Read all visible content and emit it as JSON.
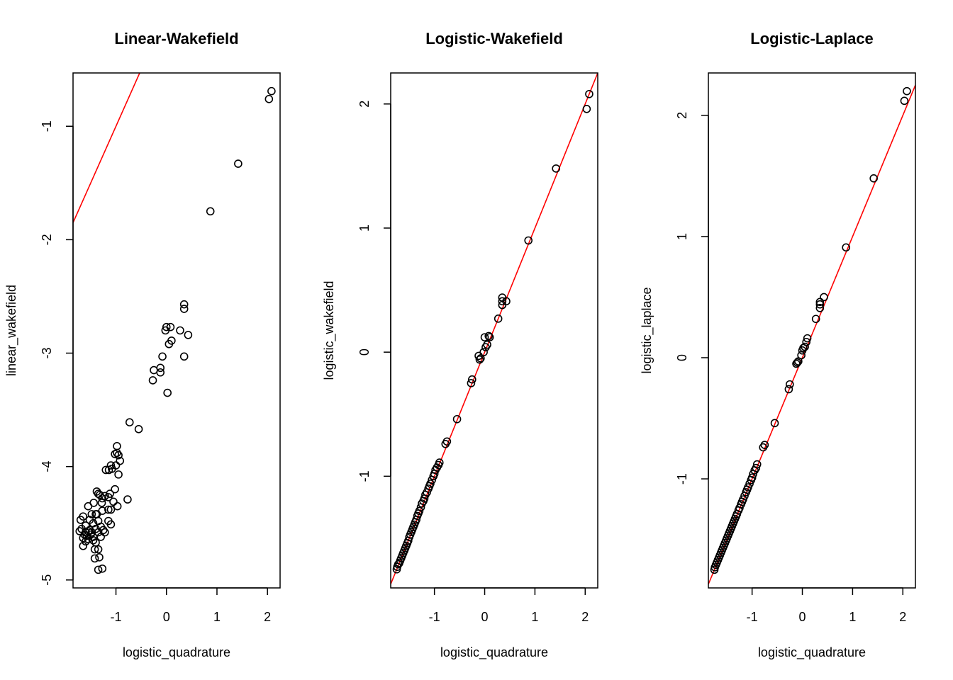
{
  "chart_data": [
    {
      "type": "scatter",
      "title": "Linear-Wakefield",
      "xlabel": "logistic_quadrature",
      "ylabel": "linear_wakefield",
      "xlim": [
        -1.85,
        2.25
      ],
      "ylim": [
        -5.07,
        -0.53
      ],
      "xticks": [
        -1,
        0,
        1,
        2
      ],
      "yticks": [
        -5,
        -4,
        -3,
        -2,
        -1
      ],
      "reference_line": {
        "intercept": 0,
        "slope": 1,
        "color": "#ff0000"
      },
      "points": [
        [
          2.08,
          -0.69
        ],
        [
          2.03,
          -0.76
        ],
        [
          1.42,
          -1.33
        ],
        [
          0.87,
          -1.75
        ],
        [
          0.35,
          -2.57
        ],
        [
          0.35,
          -2.61
        ],
        [
          0.43,
          -2.84
        ],
        [
          0.27,
          -2.8
        ],
        [
          0.35,
          -3.03
        ],
        [
          0.08,
          -2.77
        ],
        [
          0.0,
          -2.77
        ],
        [
          -0.02,
          -2.8
        ],
        [
          0.1,
          -2.89
        ],
        [
          0.05,
          -2.92
        ],
        [
          -0.08,
          -3.03
        ],
        [
          -0.12,
          -3.13
        ],
        [
          -0.12,
          -3.17
        ],
        [
          -0.25,
          -3.15
        ],
        [
          -0.27,
          -3.24
        ],
        [
          0.02,
          -3.35
        ],
        [
          -0.73,
          -3.61
        ],
        [
          -0.55,
          -3.67
        ],
        [
          -0.98,
          -3.82
        ],
        [
          -0.98,
          -3.88
        ],
        [
          -1.02,
          -3.89
        ],
        [
          -0.95,
          -3.9
        ],
        [
          -0.92,
          -3.95
        ],
        [
          -1.0,
          -3.99
        ],
        [
          -1.1,
          -3.99
        ],
        [
          -1.08,
          -4.02
        ],
        [
          -1.14,
          -4.03
        ],
        [
          -1.2,
          -4.03
        ],
        [
          -0.95,
          -4.07
        ],
        [
          -1.02,
          -4.2
        ],
        [
          -1.12,
          -4.24
        ],
        [
          -1.22,
          -4.26
        ],
        [
          -1.32,
          -4.25
        ],
        [
          -1.38,
          -4.22
        ],
        [
          -1.35,
          -4.24
        ],
        [
          -1.27,
          -4.28
        ],
        [
          -1.05,
          -4.31
        ],
        [
          -1.15,
          -4.27
        ],
        [
          -0.77,
          -4.29
        ],
        [
          -0.97,
          -4.35
        ],
        [
          -1.28,
          -4.32
        ],
        [
          -1.44,
          -4.32
        ],
        [
          -1.55,
          -4.35
        ],
        [
          -1.1,
          -4.38
        ],
        [
          -1.15,
          -4.38
        ],
        [
          -1.27,
          -4.39
        ],
        [
          -1.4,
          -4.42
        ],
        [
          -1.38,
          -4.42
        ],
        [
          -1.48,
          -4.42
        ],
        [
          -1.65,
          -4.44
        ],
        [
          -1.7,
          -4.47
        ],
        [
          -1.52,
          -4.47
        ],
        [
          -1.35,
          -4.48
        ],
        [
          -1.15,
          -4.48
        ],
        [
          -1.45,
          -4.5
        ],
        [
          -1.1,
          -4.51
        ],
        [
          -1.3,
          -4.53
        ],
        [
          -1.6,
          -4.52
        ],
        [
          -1.68,
          -4.55
        ],
        [
          -1.4,
          -4.55
        ],
        [
          -1.25,
          -4.56
        ],
        [
          -1.52,
          -4.56
        ],
        [
          -1.72,
          -4.57
        ],
        [
          -1.55,
          -4.57
        ],
        [
          -1.48,
          -4.58
        ],
        [
          -1.6,
          -4.58
        ],
        [
          -1.35,
          -4.58
        ],
        [
          -1.22,
          -4.58
        ],
        [
          -1.62,
          -4.6
        ],
        [
          -1.5,
          -4.6
        ],
        [
          -1.58,
          -4.61
        ],
        [
          -1.45,
          -4.62
        ],
        [
          -1.3,
          -4.62
        ],
        [
          -1.65,
          -4.63
        ],
        [
          -1.55,
          -4.64
        ],
        [
          -1.45,
          -4.65
        ],
        [
          -1.6,
          -4.66
        ],
        [
          -1.4,
          -4.67
        ],
        [
          -1.65,
          -4.7
        ],
        [
          -1.35,
          -4.73
        ],
        [
          -1.42,
          -4.73
        ],
        [
          -1.33,
          -4.8
        ],
        [
          -1.42,
          -4.81
        ],
        [
          -1.27,
          -4.9
        ],
        [
          -1.35,
          -4.91
        ]
      ]
    },
    {
      "type": "scatter",
      "title": "Logistic-Wakefield",
      "xlabel": "logistic_quadrature",
      "ylabel": "logistic_wakefield",
      "xlim": [
        -1.87,
        2.25
      ],
      "ylim": [
        -1.9,
        2.25
      ],
      "xticks": [
        -1,
        0,
        1,
        2
      ],
      "yticks": [
        -1,
        0,
        1,
        2
      ],
      "reference_line": {
        "intercept": 0,
        "slope": 1,
        "color": "#ff0000"
      },
      "points": [
        [
          2.08,
          2.08
        ],
        [
          2.03,
          1.96
        ],
        [
          1.42,
          1.48
        ],
        [
          0.87,
          0.9
        ],
        [
          0.35,
          0.44
        ],
        [
          0.35,
          0.41
        ],
        [
          0.43,
          0.41
        ],
        [
          0.35,
          0.38
        ],
        [
          0.27,
          0.27
        ],
        [
          0.08,
          0.13
        ],
        [
          0.1,
          0.12
        ],
        [
          0.0,
          0.12
        ],
        [
          0.05,
          0.06
        ],
        [
          0.02,
          0.04
        ],
        [
          -0.02,
          0.0
        ],
        [
          -0.12,
          -0.03
        ],
        [
          -0.08,
          -0.05
        ],
        [
          -0.1,
          -0.06
        ],
        [
          -0.25,
          -0.22
        ],
        [
          -0.27,
          -0.25
        ],
        [
          -0.55,
          -0.54
        ],
        [
          -0.75,
          -0.72
        ],
        [
          -0.78,
          -0.74
        ],
        [
          -0.9,
          -0.89
        ],
        [
          -0.92,
          -0.91
        ],
        [
          -0.95,
          -0.93
        ],
        [
          -0.98,
          -0.95
        ],
        [
          -1.0,
          -0.98
        ],
        [
          -1.02,
          -1.0
        ],
        [
          -1.05,
          -1.03
        ],
        [
          -1.08,
          -1.06
        ],
        [
          -1.1,
          -1.08
        ],
        [
          -1.12,
          -1.1
        ],
        [
          -1.15,
          -1.13
        ],
        [
          -1.18,
          -1.15
        ],
        [
          -1.2,
          -1.18
        ],
        [
          -1.22,
          -1.2
        ],
        [
          -1.25,
          -1.22
        ],
        [
          -1.27,
          -1.25
        ],
        [
          -1.3,
          -1.28
        ],
        [
          -1.32,
          -1.3
        ],
        [
          -1.34,
          -1.32
        ],
        [
          -1.36,
          -1.35
        ],
        [
          -1.38,
          -1.37
        ],
        [
          -1.4,
          -1.39
        ],
        [
          -1.42,
          -1.41
        ],
        [
          -1.44,
          -1.43
        ],
        [
          -1.46,
          -1.45
        ],
        [
          -1.48,
          -1.47
        ],
        [
          -1.5,
          -1.49
        ],
        [
          -1.52,
          -1.52
        ],
        [
          -1.54,
          -1.54
        ],
        [
          -1.56,
          -1.56
        ],
        [
          -1.58,
          -1.58
        ],
        [
          -1.6,
          -1.6
        ],
        [
          -1.62,
          -1.62
        ],
        [
          -1.64,
          -1.64
        ],
        [
          -1.66,
          -1.66
        ],
        [
          -1.68,
          -1.68
        ],
        [
          -1.7,
          -1.7
        ],
        [
          -1.72,
          -1.71
        ],
        [
          -1.74,
          -1.73
        ],
        [
          -1.75,
          -1.75
        ]
      ]
    },
    {
      "type": "scatter",
      "title": "Logistic-Laplace",
      "xlabel": "logistic_quadrature",
      "ylabel": "logistic_laplace",
      "xlim": [
        -1.87,
        2.25
      ],
      "ylim": [
        -1.9,
        2.35
      ],
      "xticks": [
        -1,
        0,
        1,
        2
      ],
      "yticks": [
        -1,
        0,
        1,
        2
      ],
      "reference_line": {
        "intercept": 0,
        "slope": 1,
        "color": "#ff0000"
      },
      "points": [
        [
          2.08,
          2.2
        ],
        [
          2.03,
          2.12
        ],
        [
          1.42,
          1.48
        ],
        [
          0.87,
          0.91
        ],
        [
          0.43,
          0.5
        ],
        [
          0.35,
          0.46
        ],
        [
          0.35,
          0.44
        ],
        [
          0.35,
          0.41
        ],
        [
          0.27,
          0.32
        ],
        [
          0.1,
          0.16
        ],
        [
          0.08,
          0.13
        ],
        [
          0.02,
          0.08
        ],
        [
          0.0,
          0.06
        ],
        [
          0.05,
          0.09
        ],
        [
          -0.02,
          0.02
        ],
        [
          -0.08,
          -0.03
        ],
        [
          -0.12,
          -0.05
        ],
        [
          -0.1,
          -0.04
        ],
        [
          -0.25,
          -0.22
        ],
        [
          -0.27,
          -0.26
        ],
        [
          -0.55,
          -0.54
        ],
        [
          -0.75,
          -0.72
        ],
        [
          -0.78,
          -0.74
        ],
        [
          -0.9,
          -0.88
        ],
        [
          -0.92,
          -0.91
        ],
        [
          -0.95,
          -0.93
        ],
        [
          -0.98,
          -0.96
        ],
        [
          -1.0,
          -0.99
        ],
        [
          -1.02,
          -1.01
        ],
        [
          -1.05,
          -1.04
        ],
        [
          -1.08,
          -1.07
        ],
        [
          -1.1,
          -1.09
        ],
        [
          -1.12,
          -1.11
        ],
        [
          -1.15,
          -1.14
        ],
        [
          -1.18,
          -1.17
        ],
        [
          -1.2,
          -1.19
        ],
        [
          -1.22,
          -1.21
        ],
        [
          -1.25,
          -1.24
        ],
        [
          -1.27,
          -1.26
        ],
        [
          -1.3,
          -1.29
        ],
        [
          -1.32,
          -1.31
        ],
        [
          -1.34,
          -1.33
        ],
        [
          -1.36,
          -1.35
        ],
        [
          -1.38,
          -1.37
        ],
        [
          -1.4,
          -1.39
        ],
        [
          -1.42,
          -1.41
        ],
        [
          -1.44,
          -1.43
        ],
        [
          -1.46,
          -1.45
        ],
        [
          -1.48,
          -1.47
        ],
        [
          -1.5,
          -1.49
        ],
        [
          -1.52,
          -1.51
        ],
        [
          -1.54,
          -1.53
        ],
        [
          -1.56,
          -1.55
        ],
        [
          -1.58,
          -1.57
        ],
        [
          -1.6,
          -1.59
        ],
        [
          -1.62,
          -1.61
        ],
        [
          -1.64,
          -1.63
        ],
        [
          -1.66,
          -1.65
        ],
        [
          -1.68,
          -1.67
        ],
        [
          -1.7,
          -1.69
        ],
        [
          -1.72,
          -1.71
        ],
        [
          -1.74,
          -1.73
        ],
        [
          -1.75,
          -1.75
        ]
      ]
    }
  ]
}
